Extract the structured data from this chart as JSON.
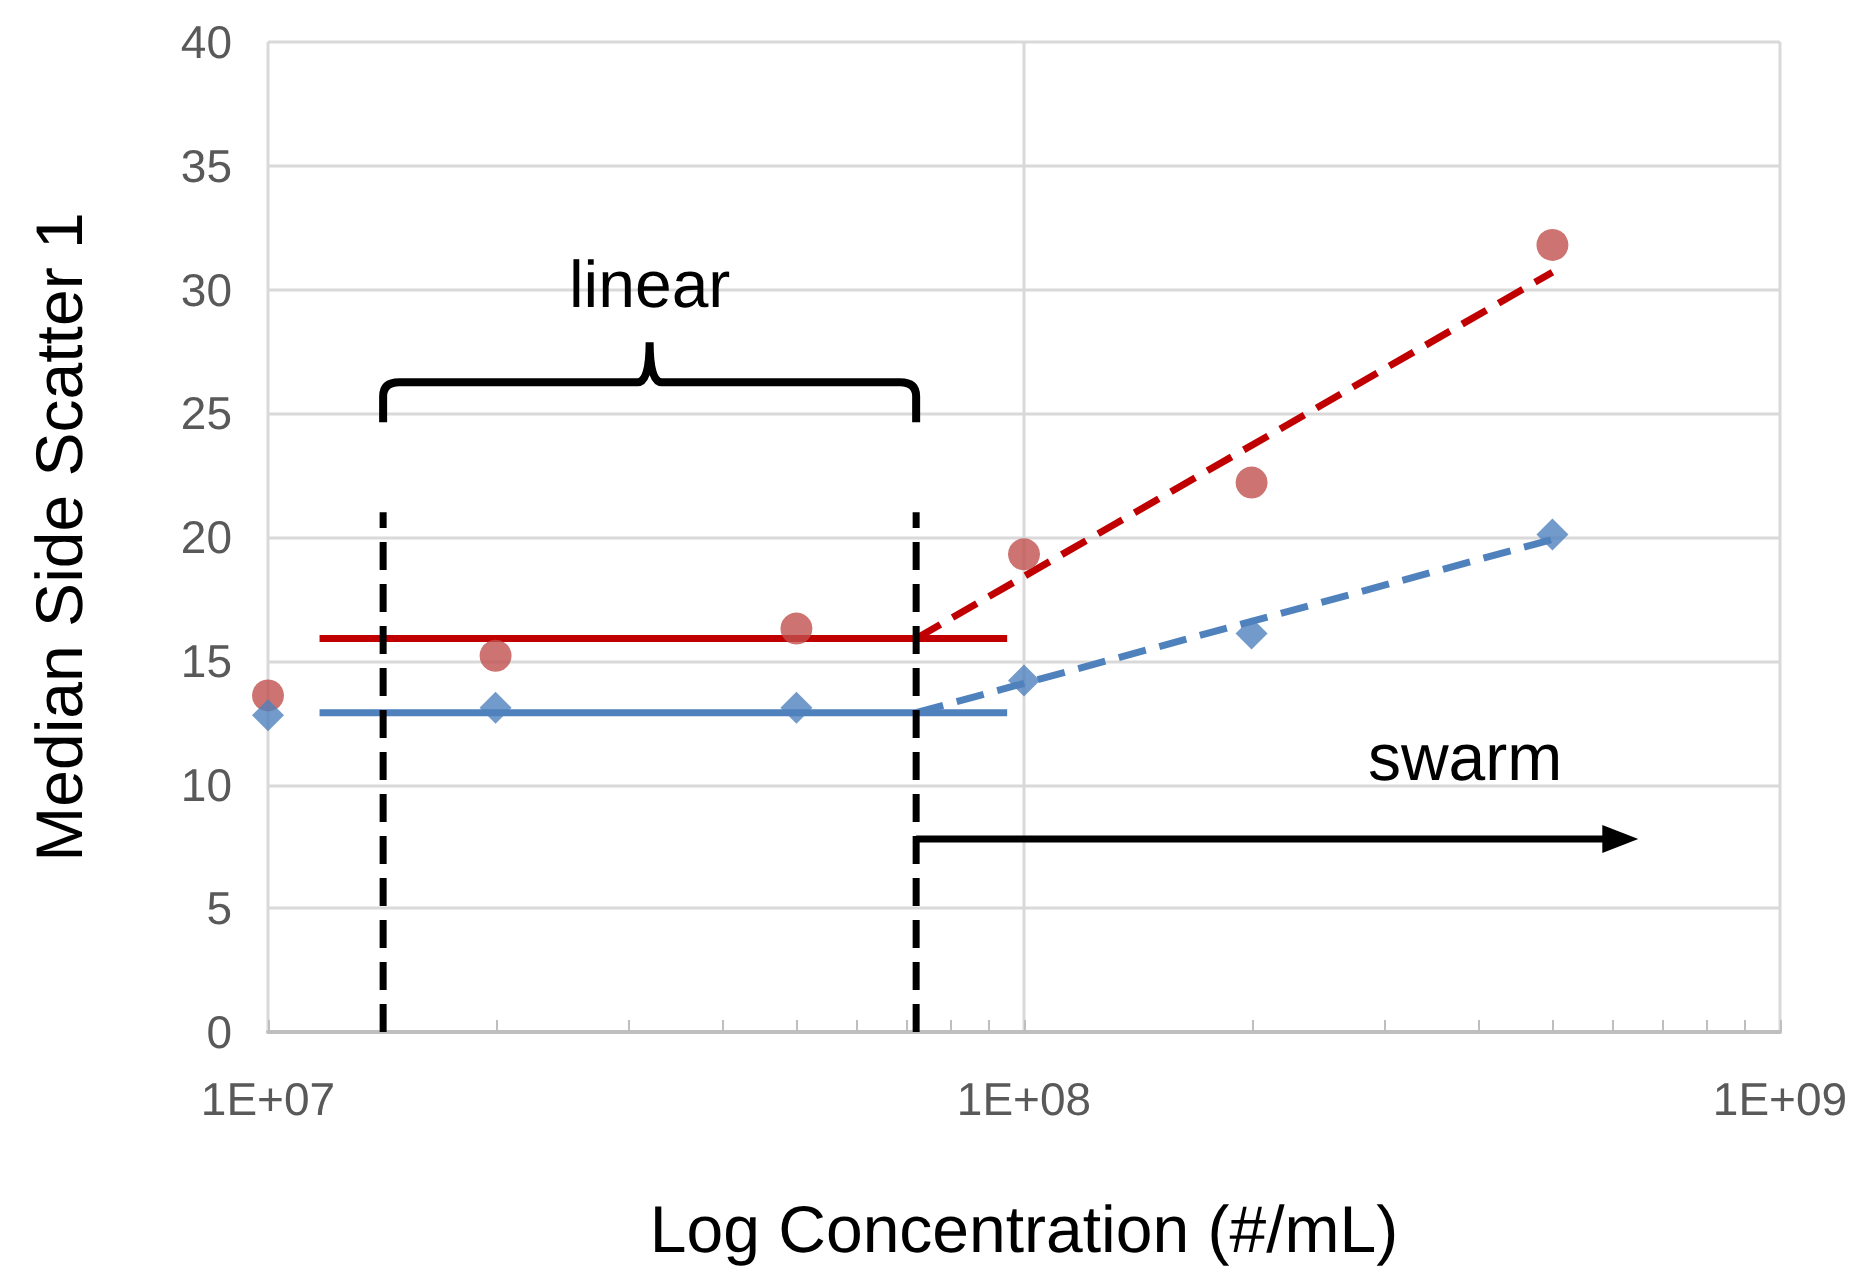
{
  "chart_data": {
    "type": "scatter",
    "xlabel": "Log Concentration (#/mL)",
    "ylabel": "Median Side Scatter 1",
    "log": "x",
    "grid": true,
    "xlim": [
      10000000,
      1000000000
    ],
    "xticks": [
      {
        "value": 10000000,
        "label": "1E+07"
      },
      {
        "value": 100000000,
        "label": "1E+08"
      },
      {
        "value": 1000000000,
        "label": "1E+09"
      }
    ],
    "ylim": [
      0,
      40
    ],
    "yticks": [
      0,
      5,
      10,
      15,
      20,
      25,
      30,
      35,
      40
    ],
    "series": [
      {
        "color": "#c0504d",
        "marker": "circle",
        "x": [
          10000000,
          20000000,
          50000000,
          100000000,
          200000000,
          500000000
        ],
        "values": [
          13.6,
          15.2,
          16.3,
          19.3,
          22.2,
          31.8
        ]
      },
      {
        "color": "#4f81bd",
        "marker": "diamond",
        "x": [
          10000000,
          20000000,
          50000000,
          100000000,
          200000000,
          500000000
        ],
        "values": [
          12.8,
          13.1,
          13.1,
          14.2,
          16.1,
          20.1
        ]
      },
      {
        "type": "line",
        "color": "#c00000",
        "line_style": "solid",
        "marker": "none",
        "x": [
          11700000,
          95000000
        ],
        "values": [
          15.9,
          15.9
        ]
      },
      {
        "type": "line",
        "color": "#4f81bd",
        "line_style": "solid",
        "marker": "none",
        "x": [
          11700000,
          95000000
        ],
        "values": [
          12.9,
          12.9
        ]
      },
      {
        "type": "line",
        "color": "#c00000",
        "line_style": "dashed",
        "marker": "none",
        "x": [
          72000000,
          500000000
        ],
        "values": [
          15.9,
          30.7
        ]
      },
      {
        "type": "line",
        "color": "#4f81bd",
        "line_style": "dashed",
        "marker": "none",
        "x": [
          72000000,
          500000000
        ],
        "values": [
          12.9,
          19.9
        ]
      },
      {
        "type": "line",
        "color": "#000000",
        "line_style": "dashed",
        "marker": "none",
        "x": [
          14200000,
          14200000
        ],
        "values": [
          0,
          21
        ]
      },
      {
        "type": "line",
        "color": "#000000",
        "line_style": "dashed",
        "marker": "none",
        "x": [
          72000000,
          72000000
        ],
        "values": [
          0,
          21
        ]
      },
      {
        "type": "line",
        "color": "#000000",
        "line_style": "solid",
        "marker": "triangle",
        "x": [
          72000000,
          600000000
        ],
        "values": [
          7.8,
          7.8
        ]
      }
    ],
    "annotations": [
      "linear",
      "swarm"
    ]
  }
}
